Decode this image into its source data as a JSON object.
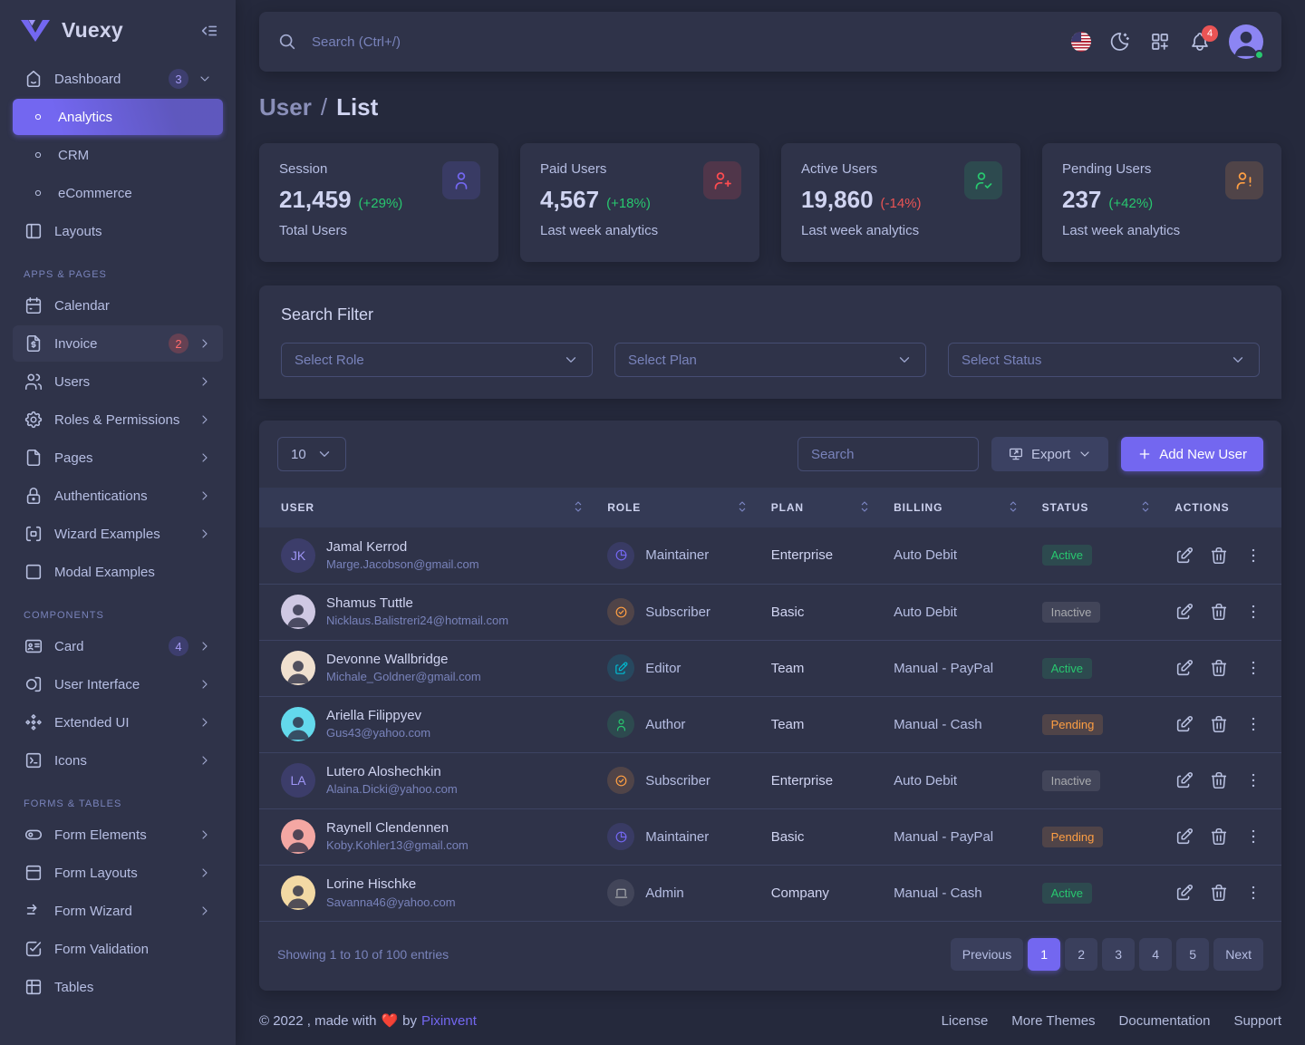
{
  "colors": {
    "accent": "#7367f0",
    "green": "#28c76f",
    "red": "#ff4c51",
    "orange": "#ff9f43",
    "cyan": "#00bad1",
    "gray": "#a8aaae",
    "bg": "#25293c",
    "card": "#2f3349"
  },
  "brand": {
    "name": "Vuexy"
  },
  "sidebar": {
    "items": [
      {
        "label": "Dashboard",
        "icon": "home",
        "badge": "3",
        "badge_color": "purple",
        "chevron": "down"
      },
      {
        "label": "Analytics",
        "icon": "dot",
        "sub": true,
        "active": true
      },
      {
        "label": "CRM",
        "icon": "dot",
        "sub": true
      },
      {
        "label": "eCommerce",
        "icon": "dot",
        "sub": true
      },
      {
        "label": "Layouts",
        "icon": "layout"
      },
      {
        "section": "APPS & PAGES"
      },
      {
        "label": "Calendar",
        "icon": "calendar"
      },
      {
        "label": "Invoice",
        "icon": "invoice",
        "badge": "2",
        "badge_color": "red",
        "chevron": "right",
        "highlight": true
      },
      {
        "label": "Users",
        "icon": "users",
        "chevron": "right"
      },
      {
        "label": "Roles & Permissions",
        "icon": "gear",
        "chevron": "right"
      },
      {
        "label": "Pages",
        "icon": "file",
        "chevron": "right"
      },
      {
        "label": "Authentications",
        "icon": "lock",
        "chevron": "right"
      },
      {
        "label": "Wizard Examples",
        "icon": "wizard",
        "chevron": "right"
      },
      {
        "label": "Modal Examples",
        "icon": "square"
      },
      {
        "section": "COMPONENTS"
      },
      {
        "label": "Card",
        "icon": "card",
        "badge": "4",
        "badge_color": "purple",
        "chevron": "right"
      },
      {
        "label": "User Interface",
        "icon": "ui",
        "chevron": "right"
      },
      {
        "label": "Extended UI",
        "icon": "extended",
        "chevron": "right"
      },
      {
        "label": "Icons",
        "icon": "icons",
        "chevron": "right"
      },
      {
        "section": "FORMS & TABLES"
      },
      {
        "label": "Form Elements",
        "icon": "toggle",
        "chevron": "right"
      },
      {
        "label": "Form Layouts",
        "icon": "form-layout",
        "chevron": "right"
      },
      {
        "label": "Form Wizard",
        "icon": "form-wizard",
        "chevron": "right"
      },
      {
        "label": "Form Validation",
        "icon": "checkbox"
      },
      {
        "label": "Tables",
        "icon": "table"
      }
    ]
  },
  "topbar": {
    "search_placeholder": "Search (Ctrl+/)",
    "notification_count": "4",
    "icons": [
      "us-flag",
      "moon-stars",
      "apps-grid",
      "notification-bell",
      "user-avatar"
    ]
  },
  "breadcrumb": {
    "parent": "User",
    "separator": "/",
    "current": "List"
  },
  "stats": [
    {
      "title": "Session",
      "value": "21,459",
      "change": "(+29%)",
      "change_color": "green",
      "subtitle": "Total Users",
      "icon": "user",
      "icon_color": "purple"
    },
    {
      "title": "Paid Users",
      "value": "4,567",
      "change": "(+18%)",
      "change_color": "green",
      "subtitle": "Last week analytics",
      "icon": "user-plus",
      "icon_color": "red"
    },
    {
      "title": "Active Users",
      "value": "19,860",
      "change": "(-14%)",
      "change_color": "red",
      "subtitle": "Last week analytics",
      "icon": "user-check",
      "icon_color": "green"
    },
    {
      "title": "Pending Users",
      "value": "237",
      "change": "(+42%)",
      "change_color": "green",
      "subtitle": "Last week analytics",
      "icon": "user-exclamation",
      "icon_color": "orange"
    }
  ],
  "filter": {
    "title": "Search Filter",
    "selects": [
      "Select Role",
      "Select Plan",
      "Select Status"
    ]
  },
  "table": {
    "page_size": "10",
    "search_placeholder": "Search",
    "export_label": "Export",
    "add_label": "Add New User",
    "columns": [
      "User",
      "Role",
      "Plan",
      "Billing",
      "Status",
      "Actions"
    ],
    "rows": [
      {
        "name": "Jamal Kerrod",
        "email": "Marge.Jacobson@gmail.com",
        "avatar": {
          "type": "initials",
          "text": "JK"
        },
        "role": "Maintainer",
        "role_icon": "chart-pie",
        "role_color": "purple",
        "plan": "Enterprise",
        "billing": "Auto Debit",
        "status": "Active"
      },
      {
        "name": "Shamus Tuttle",
        "email": "Nicklaus.Balistreri24@hotmail.com",
        "avatar": {
          "type": "photo",
          "bg": "#cfc8e3"
        },
        "role": "Subscriber",
        "role_icon": "circle-check",
        "role_color": "orange",
        "plan": "Basic",
        "billing": "Auto Debit",
        "status": "Inactive"
      },
      {
        "name": "Devonne Wallbridge",
        "email": "Michale_Goldner@gmail.com",
        "avatar": {
          "type": "photo",
          "bg": "#f0e0cf"
        },
        "role": "Editor",
        "role_icon": "edit",
        "role_color": "cyan",
        "plan": "Team",
        "billing": "Manual - PayPal",
        "status": "Active"
      },
      {
        "name": "Ariella Filippyev",
        "email": "Gus43@yahoo.com",
        "avatar": {
          "type": "photo",
          "bg": "#63d9ec"
        },
        "role": "Author",
        "role_icon": "user",
        "role_color": "green",
        "plan": "Team",
        "billing": "Manual - Cash",
        "status": "Pending"
      },
      {
        "name": "Lutero Aloshechkin",
        "email": "Alaina.Dicki@yahoo.com",
        "avatar": {
          "type": "initials",
          "text": "LA"
        },
        "role": "Subscriber",
        "role_icon": "circle-check",
        "role_color": "orange",
        "plan": "Enterprise",
        "billing": "Auto Debit",
        "status": "Inactive"
      },
      {
        "name": "Raynell Clendennen",
        "email": "Koby.Kohler13@gmail.com",
        "avatar": {
          "type": "photo",
          "bg": "#f4a7a3"
        },
        "role": "Maintainer",
        "role_icon": "chart-pie",
        "role_color": "purple",
        "plan": "Basic",
        "billing": "Manual - PayPal",
        "status": "Pending"
      },
      {
        "name": "Lorine Hischke",
        "email": "Savanna46@yahoo.com",
        "avatar": {
          "type": "photo",
          "bg": "#f3d9a4"
        },
        "role": "Admin",
        "role_icon": "laptop",
        "role_color": "gray",
        "plan": "Company",
        "billing": "Manual - Cash",
        "status": "Active"
      }
    ]
  },
  "pagination": {
    "summary": "Showing 1 to 10 of 100 entries",
    "prev": "Previous",
    "pages": [
      "1",
      "2",
      "3",
      "4",
      "5"
    ],
    "active_page": "1",
    "next": "Next"
  },
  "footer": {
    "copyright": "© 2022 , made with",
    "heart": "❤️",
    "by": "by",
    "brand": "Pixinvent",
    "links": [
      "License",
      "More Themes",
      "Documentation",
      "Support"
    ]
  }
}
